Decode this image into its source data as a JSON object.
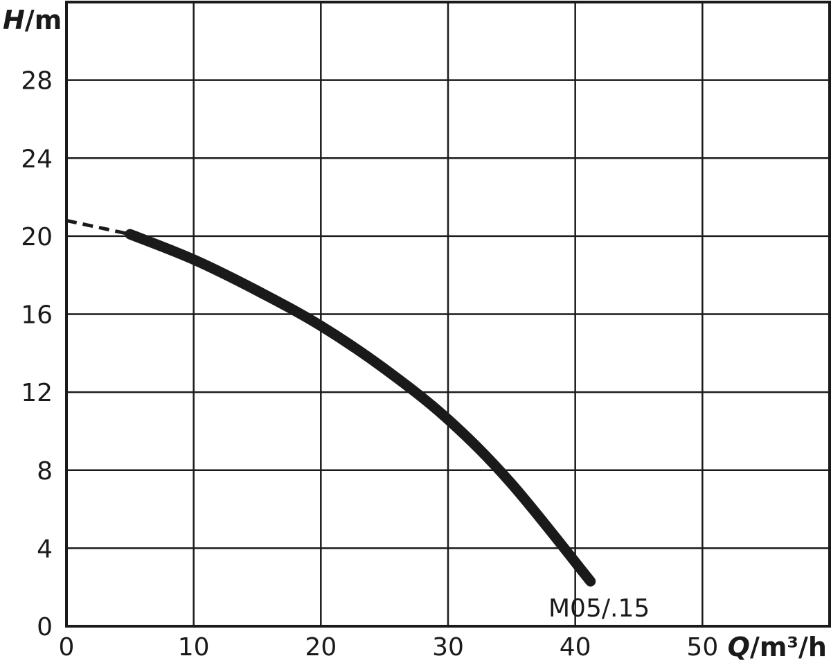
{
  "chart_data": {
    "type": "line",
    "title": "",
    "xlabel": {
      "var": "Q",
      "unit": "/m³/h"
    },
    "ylabel": {
      "var": "H",
      "unit": "/m"
    },
    "xlim": [
      0,
      60
    ],
    "ylim": [
      0,
      32
    ],
    "x_ticks": [
      0,
      10,
      20,
      30,
      40,
      50
    ],
    "y_ticks": [
      0,
      4,
      8,
      12,
      16,
      20,
      24,
      28
    ],
    "x_tick_labels": [
      "0",
      "10",
      "20",
      "30",
      "40",
      "50"
    ],
    "y_tick_labels": [
      "0",
      "4",
      "8",
      "12",
      "16",
      "20",
      "24",
      "28"
    ],
    "grid": true,
    "series": [
      {
        "name": "M05/.15",
        "color": "#1a1a1a",
        "extrapolated": [
          [
            0,
            20.8
          ],
          [
            5,
            20.1
          ]
        ],
        "points": [
          [
            5,
            20.1
          ],
          [
            10,
            18.8
          ],
          [
            15,
            17.2
          ],
          [
            20,
            15.4
          ],
          [
            25,
            13.2
          ],
          [
            30,
            10.6
          ],
          [
            35,
            7.3
          ],
          [
            41.2,
            2.3
          ]
        ]
      }
    ]
  }
}
